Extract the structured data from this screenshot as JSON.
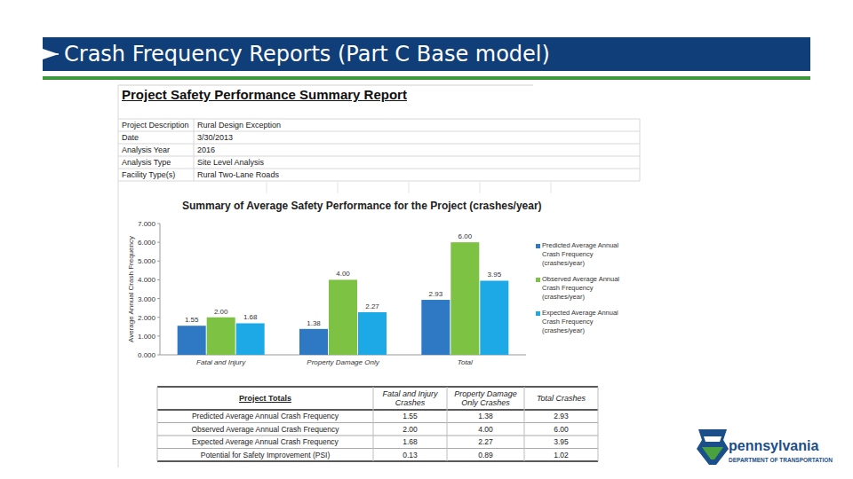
{
  "slide": {
    "title": "Crash Frequency Reports (Part C Base model)"
  },
  "report": {
    "title": "Project Safety Performance Summary Report",
    "info": [
      [
        "Project Description",
        "Rural Design Exception"
      ],
      [
        "Date",
        "3/30/2013"
      ],
      [
        "Analysis Year",
        "2016"
      ],
      [
        "Analysis Type",
        "Site Level Analysis"
      ],
      [
        "Facility Type(s)",
        "Rural Two-Lane Roads"
      ]
    ]
  },
  "chart_data": {
    "type": "bar",
    "title": "Summary of Average Safety Performance for the Project (crashes/year)",
    "y_label": "Average Annual Crash Frequency",
    "categories": [
      "Fatal and Injury",
      "Property Damage Only",
      "Total"
    ],
    "series": [
      {
        "name": "Predicted Average Annual Crash Frequency (crashes/year)",
        "color": "#2f78c4",
        "values": [
          1.55,
          1.38,
          2.93
        ],
        "value_labels": [
          "1.55",
          "1.38",
          "2.93"
        ]
      },
      {
        "name": "Observed Average Annual Crash Frequency (crashes/year)",
        "color": "#7dc242",
        "values": [
          2.0,
          4.0,
          6.0
        ],
        "value_labels": [
          "2.00",
          "4.00",
          "6.00"
        ]
      },
      {
        "name": "Expected Average Annual Crash Frequency (crashes/year)",
        "color": "#1ca9e6",
        "values": [
          1.68,
          2.27,
          3.95
        ],
        "value_labels": [
          "1.68",
          "2.27",
          "3.95"
        ]
      }
    ],
    "ylim": [
      0,
      7
    ],
    "yticks": [
      {
        "value": 0,
        "label": "0.000"
      },
      {
        "value": 1,
        "label": "1.000"
      },
      {
        "value": 2,
        "label": "2.000"
      },
      {
        "value": 3,
        "label": "3.000"
      },
      {
        "value": 4,
        "label": "4.000"
      },
      {
        "value": 5,
        "label": "5.000"
      },
      {
        "value": 6,
        "label": "6.000"
      },
      {
        "value": 7,
        "label": "7.000"
      }
    ],
    "grid": false,
    "legend": "right",
    "data_labels": true
  },
  "table": {
    "header": [
      "Project Totals",
      "Fatal and Injury Crashes",
      "Property Damage Only Crashes",
      "Total Crashes"
    ],
    "rows": [
      [
        "Predicted Average Annual Crash Frequency",
        "1.55",
        "1.38",
        "2.93"
      ],
      [
        "Observed Average Annual Crash Frequency",
        "2.00",
        "4.00",
        "6.00"
      ],
      [
        "Expected Average Annual Crash Frequency",
        "1.68",
        "2.27",
        "3.95"
      ],
      [
        "Potential for Safety Improvement (PSI)",
        "0.13",
        "0.89",
        "1.02"
      ]
    ]
  },
  "logo": {
    "name": "pennsylvania",
    "subtitle": "DEPARTMENT OF TRANSPORTATION"
  }
}
